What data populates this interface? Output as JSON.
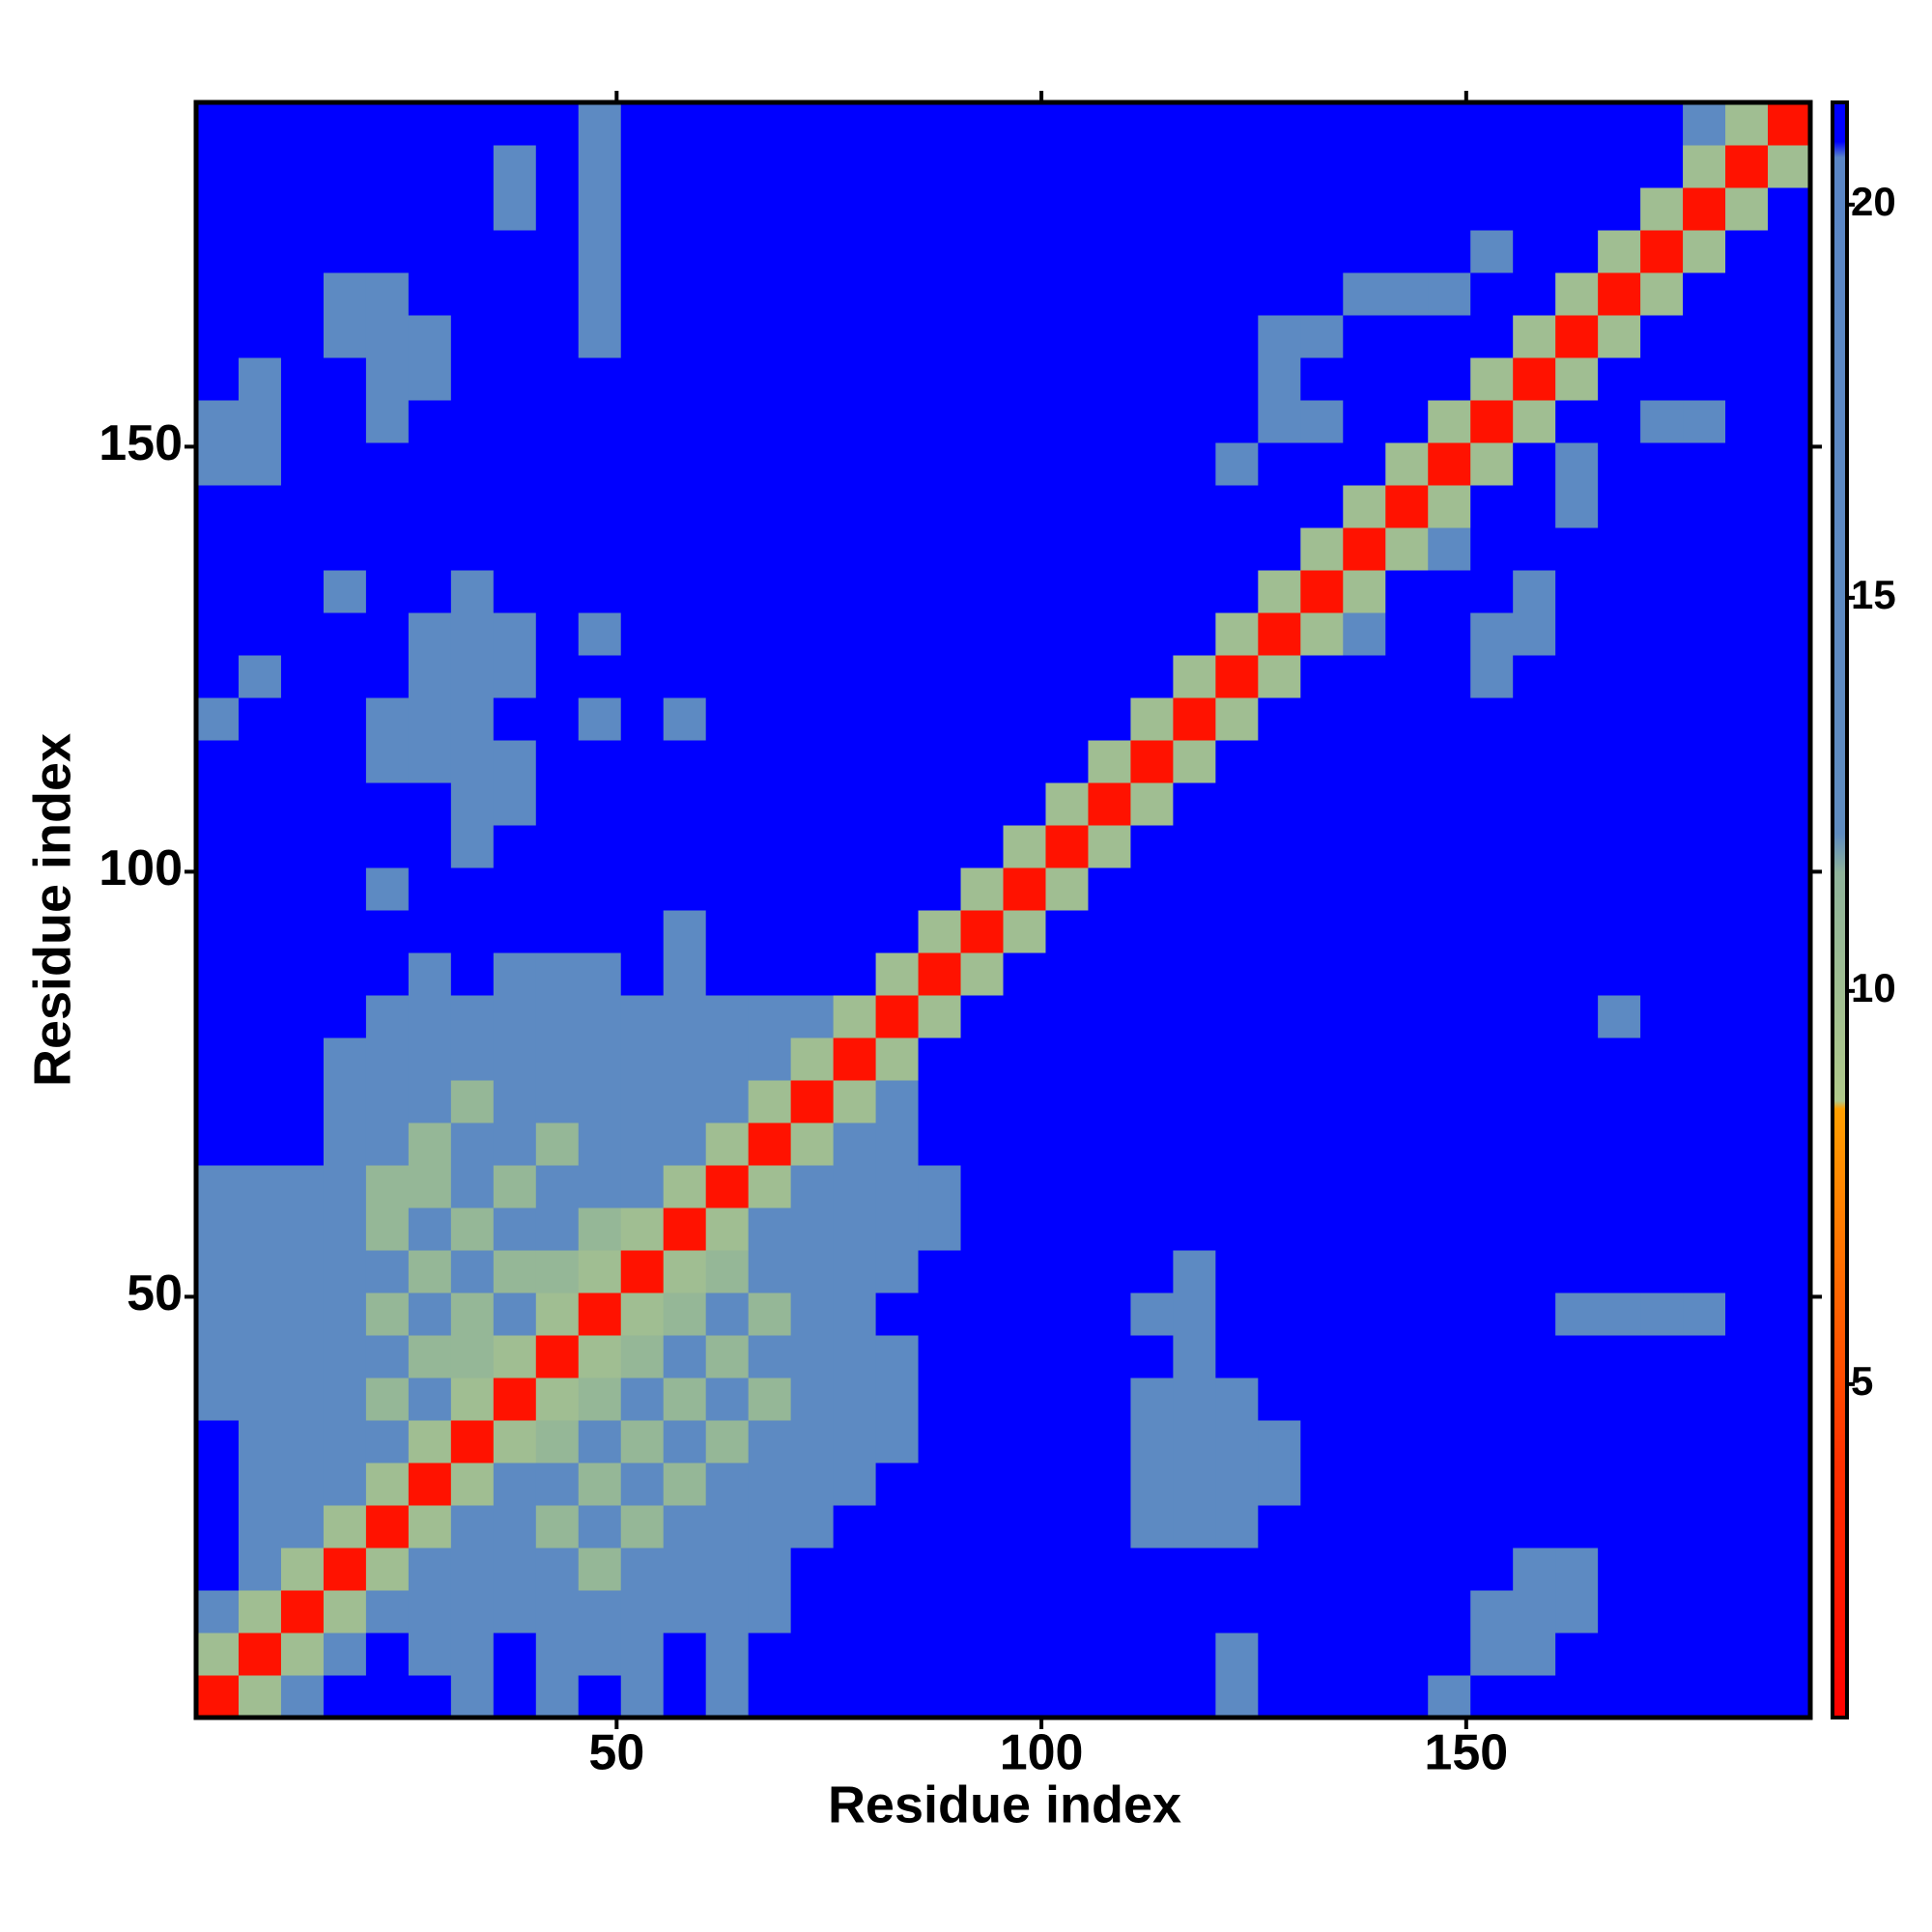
{
  "chart_data": {
    "type": "heatmap",
    "x_label": "Residue index",
    "y_label": "Residue index",
    "xlim": [
      0.5,
      190.5
    ],
    "ylim": [
      0.5,
      190.5
    ],
    "xticks": [
      50,
      100,
      150
    ],
    "yticks": [
      50,
      100,
      150
    ],
    "x": [
      3,
      8,
      13,
      18,
      23,
      28,
      33,
      38,
      43,
      48,
      53,
      58,
      63,
      68,
      73,
      78,
      83,
      88,
      93,
      98,
      103,
      108,
      113,
      118,
      123,
      128,
      133,
      138,
      143,
      148,
      153,
      158,
      163,
      168,
      173,
      178,
      183,
      188
    ],
    "y": [
      3,
      8,
      13,
      18,
      23,
      28,
      33,
      38,
      43,
      48,
      53,
      58,
      63,
      68,
      73,
      78,
      83,
      88,
      93,
      98,
      103,
      108,
      113,
      118,
      123,
      128,
      133,
      138,
      143,
      148,
      153,
      158,
      163,
      168,
      173,
      178,
      183,
      188
    ],
    "colorscale": [
      {
        "value": 0.76,
        "color": "#ff0000"
      },
      {
        "value": 4,
        "color": "#ff3000"
      },
      {
        "value": 8.5,
        "color": "#ffa000"
      },
      {
        "value": 8.6,
        "color": "#b0c98a"
      },
      {
        "value": 11.5,
        "color": "#8fb39a"
      },
      {
        "value": 12,
        "color": "#5f8cc0"
      },
      {
        "value": 20.6,
        "color": "#5a86c6"
      },
      {
        "value": 20.8,
        "color": "#0000ff"
      },
      {
        "value": 21.3,
        "color": "#0000ff"
      }
    ],
    "colorbar": {
      "ylim": [
        0.76,
        21.3
      ],
      "ticks": [
        5,
        10,
        15,
        20
      ]
    },
    "z": [
      [
        2,
        10,
        15,
        21,
        21,
        21,
        15,
        21,
        15,
        21,
        15,
        21,
        15,
        21,
        21,
        21,
        21,
        21,
        21,
        21,
        21,
        21,
        21,
        21,
        15,
        21,
        21,
        21,
        21,
        15,
        21,
        21,
        21,
        21,
        21,
        21,
        21,
        21
      ],
      [
        10,
        2,
        10,
        15,
        21,
        15,
        15,
        21,
        15,
        15,
        15,
        21,
        15,
        21,
        21,
        21,
        21,
        21,
        21,
        21,
        21,
        21,
        21,
        21,
        15,
        21,
        21,
        21,
        21,
        21,
        15,
        15,
        21,
        21,
        21,
        21,
        21,
        21
      ],
      [
        15,
        10,
        2,
        10,
        15,
        15,
        15,
        15,
        15,
        15,
        15,
        15,
        15,
        15,
        21,
        21,
        21,
        21,
        21,
        21,
        21,
        21,
        21,
        21,
        21,
        21,
        21,
        21,
        21,
        21,
        15,
        15,
        15,
        21,
        21,
        21,
        21,
        21
      ],
      [
        21,
        15,
        10,
        2,
        10,
        15,
        15,
        15,
        15,
        11,
        15,
        15,
        15,
        15,
        21,
        21,
        21,
        21,
        21,
        21,
        21,
        21,
        21,
        21,
        21,
        21,
        21,
        21,
        21,
        21,
        21,
        15,
        15,
        21,
        21,
        21,
        21,
        21
      ],
      [
        21,
        15,
        15,
        10,
        2,
        10,
        15,
        15,
        11,
        15,
        11,
        15,
        15,
        15,
        15,
        21,
        21,
        21,
        21,
        21,
        21,
        21,
        15,
        15,
        15,
        21,
        21,
        21,
        21,
        21,
        21,
        21,
        21,
        21,
        21,
        21,
        21,
        21
      ],
      [
        21,
        15,
        15,
        15,
        10,
        2,
        10,
        15,
        15,
        11,
        15,
        11,
        15,
        15,
        15,
        15,
        21,
        21,
        21,
        21,
        21,
        21,
        15,
        15,
        15,
        15,
        21,
        21,
        21,
        21,
        21,
        21,
        21,
        21,
        21,
        21,
        21,
        21
      ],
      [
        21,
        15,
        15,
        15,
        15,
        10,
        2,
        10,
        11,
        15,
        11,
        15,
        11,
        15,
        15,
        15,
        15,
        21,
        21,
        21,
        21,
        21,
        15,
        15,
        15,
        15,
        21,
        21,
        21,
        21,
        21,
        21,
        21,
        21,
        21,
        21,
        21,
        21
      ],
      [
        15,
        15,
        15,
        15,
        11,
        15,
        10,
        2,
        10,
        11,
        15,
        11,
        15,
        11,
        15,
        15,
        15,
        21,
        21,
        21,
        21,
        21,
        15,
        15,
        15,
        21,
        21,
        21,
        21,
        21,
        21,
        21,
        21,
        21,
        21,
        21,
        21,
        21
      ],
      [
        15,
        15,
        15,
        15,
        15,
        11,
        11,
        10,
        2,
        10,
        11,
        15,
        11,
        15,
        15,
        15,
        15,
        21,
        21,
        21,
        21,
        21,
        21,
        15,
        21,
        21,
        21,
        21,
        21,
        21,
        21,
        21,
        21,
        21,
        21,
        21,
        21,
        21
      ],
      [
        15,
        15,
        15,
        15,
        11,
        15,
        11,
        15,
        10,
        2,
        10,
        11,
        15,
        11,
        15,
        15,
        21,
        21,
        21,
        21,
        21,
        21,
        15,
        15,
        21,
        21,
        21,
        21,
        21,
        21,
        21,
        21,
        15,
        15,
        15,
        15,
        21,
        21
      ],
      [
        15,
        15,
        15,
        15,
        15,
        11,
        15,
        11,
        11,
        10,
        2,
        10,
        11,
        15,
        15,
        15,
        15,
        21,
        21,
        21,
        21,
        21,
        21,
        15,
        21,
        21,
        21,
        21,
        21,
        21,
        21,
        21,
        21,
        21,
        21,
        21,
        21,
        21
      ],
      [
        15,
        15,
        15,
        15,
        11,
        15,
        11,
        15,
        15,
        11,
        10,
        2,
        10,
        15,
        15,
        15,
        15,
        15,
        21,
        21,
        21,
        21,
        21,
        21,
        21,
        21,
        21,
        21,
        21,
        21,
        21,
        21,
        21,
        21,
        21,
        21,
        21,
        21
      ],
      [
        15,
        15,
        15,
        15,
        11,
        11,
        15,
        11,
        15,
        15,
        15,
        10,
        2,
        10,
        15,
        15,
        15,
        15,
        21,
        21,
        21,
        21,
        21,
        21,
        21,
        21,
        21,
        21,
        21,
        21,
        21,
        21,
        21,
        21,
        21,
        21,
        21,
        21
      ],
      [
        21,
        21,
        21,
        15,
        15,
        11,
        15,
        15,
        11,
        15,
        15,
        15,
        10,
        2,
        10,
        15,
        15,
        21,
        21,
        21,
        21,
        21,
        21,
        21,
        21,
        21,
        21,
        21,
        21,
        21,
        21,
        21,
        21,
        21,
        21,
        21,
        21,
        21
      ],
      [
        21,
        21,
        21,
        15,
        15,
        15,
        11,
        15,
        15,
        15,
        15,
        15,
        15,
        10,
        2,
        10,
        15,
        21,
        21,
        21,
        21,
        21,
        21,
        21,
        21,
        21,
        21,
        21,
        21,
        21,
        21,
        21,
        21,
        21,
        21,
        21,
        21,
        21
      ],
      [
        21,
        21,
        21,
        15,
        15,
        15,
        15,
        15,
        15,
        15,
        15,
        15,
        15,
        15,
        10,
        2,
        10,
        21,
        21,
        21,
        21,
        21,
        21,
        21,
        21,
        21,
        21,
        21,
        21,
        21,
        21,
        21,
        21,
        21,
        21,
        21,
        21,
        21
      ],
      [
        21,
        21,
        21,
        21,
        15,
        15,
        15,
        15,
        15,
        15,
        15,
        15,
        15,
        15,
        15,
        10,
        2,
        10,
        21,
        21,
        21,
        21,
        21,
        21,
        21,
        21,
        21,
        21,
        21,
        21,
        21,
        21,
        21,
        15,
        21,
        21,
        21,
        21
      ],
      [
        21,
        21,
        21,
        21,
        21,
        15,
        21,
        15,
        15,
        15,
        21,
        15,
        21,
        21,
        21,
        21,
        10,
        2,
        10,
        21,
        21,
        21,
        21,
        21,
        21,
        21,
        21,
        21,
        21,
        21,
        21,
        21,
        21,
        21,
        21,
        21,
        21,
        21
      ],
      [
        21,
        21,
        21,
        21,
        21,
        21,
        21,
        21,
        21,
        21,
        21,
        15,
        21,
        21,
        21,
        21,
        21,
        10,
        2,
        10,
        21,
        21,
        21,
        21,
        21,
        21,
        21,
        21,
        21,
        21,
        21,
        21,
        21,
        21,
        21,
        21,
        21,
        21
      ],
      [
        21,
        21,
        21,
        21,
        15,
        21,
        21,
        21,
        21,
        21,
        21,
        21,
        21,
        21,
        21,
        21,
        21,
        21,
        10,
        2,
        10,
        21,
        21,
        21,
        21,
        21,
        21,
        21,
        21,
        21,
        21,
        21,
        21,
        21,
        21,
        21,
        21,
        21
      ],
      [
        21,
        21,
        21,
        21,
        21,
        21,
        15,
        21,
        21,
        21,
        21,
        21,
        21,
        21,
        21,
        21,
        21,
        21,
        21,
        10,
        2,
        10,
        21,
        21,
        21,
        21,
        21,
        21,
        21,
        21,
        21,
        21,
        21,
        21,
        21,
        21,
        21,
        21
      ],
      [
        21,
        21,
        21,
        21,
        21,
        21,
        15,
        15,
        21,
        21,
        21,
        21,
        21,
        21,
        21,
        21,
        21,
        21,
        21,
        21,
        10,
        2,
        10,
        21,
        21,
        21,
        21,
        21,
        21,
        21,
        21,
        21,
        21,
        21,
        21,
        21,
        21,
        21
      ],
      [
        21,
        21,
        21,
        21,
        15,
        15,
        15,
        15,
        21,
        21,
        21,
        21,
        21,
        21,
        21,
        21,
        21,
        21,
        21,
        21,
        21,
        10,
        2,
        10,
        21,
        21,
        21,
        21,
        21,
        21,
        21,
        21,
        21,
        21,
        21,
        21,
        21,
        21
      ],
      [
        15,
        21,
        21,
        21,
        15,
        15,
        15,
        21,
        21,
        15,
        21,
        15,
        21,
        21,
        21,
        21,
        21,
        21,
        21,
        21,
        21,
        21,
        10,
        2,
        10,
        21,
        21,
        21,
        21,
        21,
        21,
        21,
        21,
        21,
        21,
        21,
        21,
        21
      ],
      [
        21,
        15,
        21,
        21,
        21,
        15,
        15,
        15,
        21,
        21,
        21,
        21,
        21,
        21,
        21,
        21,
        21,
        21,
        21,
        21,
        21,
        21,
        21,
        10,
        2,
        10,
        21,
        21,
        21,
        21,
        15,
        21,
        21,
        21,
        21,
        21,
        21,
        21
      ],
      [
        21,
        21,
        21,
        21,
        21,
        15,
        15,
        15,
        21,
        15,
        21,
        21,
        21,
        21,
        21,
        21,
        21,
        21,
        21,
        21,
        21,
        21,
        21,
        21,
        10,
        2,
        10,
        15,
        21,
        21,
        15,
        15,
        21,
        21,
        21,
        21,
        21,
        21
      ],
      [
        21,
        21,
        21,
        15,
        21,
        21,
        15,
        21,
        21,
        21,
        21,
        21,
        21,
        21,
        21,
        21,
        21,
        21,
        21,
        21,
        21,
        21,
        21,
        21,
        21,
        10,
        2,
        10,
        21,
        21,
        21,
        15,
        21,
        21,
        21,
        21,
        21,
        21
      ],
      [
        21,
        21,
        21,
        21,
        21,
        21,
        21,
        21,
        21,
        21,
        21,
        21,
        21,
        21,
        21,
        21,
        21,
        21,
        21,
        21,
        21,
        21,
        21,
        21,
        21,
        21,
        10,
        2,
        10,
        15,
        21,
        21,
        21,
        21,
        21,
        21,
        21,
        21
      ],
      [
        21,
        21,
        21,
        21,
        21,
        21,
        21,
        21,
        21,
        21,
        21,
        21,
        21,
        21,
        21,
        21,
        21,
        21,
        21,
        21,
        21,
        21,
        21,
        21,
        21,
        21,
        21,
        10,
        2,
        10,
        21,
        21,
        15,
        21,
        21,
        21,
        21,
        21
      ],
      [
        15,
        15,
        21,
        21,
        21,
        21,
        21,
        21,
        21,
        21,
        21,
        21,
        21,
        21,
        21,
        21,
        21,
        21,
        21,
        21,
        21,
        21,
        21,
        21,
        15,
        21,
        21,
        21,
        10,
        2,
        10,
        21,
        15,
        21,
        21,
        21,
        21,
        21
      ],
      [
        15,
        15,
        21,
        21,
        15,
        21,
        21,
        21,
        21,
        21,
        21,
        21,
        21,
        21,
        21,
        21,
        21,
        21,
        21,
        21,
        21,
        21,
        21,
        21,
        21,
        15,
        15,
        21,
        21,
        10,
        2,
        10,
        21,
        21,
        15,
        15,
        21,
        21
      ],
      [
        21,
        15,
        21,
        21,
        15,
        15,
        21,
        21,
        21,
        21,
        21,
        21,
        21,
        21,
        21,
        21,
        21,
        21,
        21,
        21,
        21,
        21,
        21,
        21,
        21,
        15,
        21,
        21,
        21,
        21,
        10,
        2,
        10,
        21,
        21,
        21,
        21,
        21
      ],
      [
        21,
        21,
        21,
        15,
        15,
        15,
        21,
        21,
        21,
        15,
        21,
        21,
        21,
        21,
        21,
        21,
        21,
        21,
        21,
        21,
        21,
        21,
        21,
        21,
        21,
        15,
        15,
        21,
        21,
        21,
        21,
        10,
        2,
        10,
        21,
        21,
        21,
        21
      ],
      [
        21,
        21,
        21,
        15,
        15,
        21,
        21,
        21,
        21,
        15,
        21,
        21,
        21,
        21,
        21,
        21,
        21,
        21,
        21,
        21,
        21,
        21,
        21,
        21,
        21,
        21,
        21,
        15,
        15,
        15,
        21,
        21,
        10,
        2,
        10,
        21,
        21,
        21
      ],
      [
        21,
        21,
        21,
        21,
        21,
        21,
        21,
        21,
        21,
        15,
        21,
        21,
        21,
        21,
        21,
        21,
        21,
        21,
        21,
        21,
        21,
        21,
        21,
        21,
        21,
        21,
        21,
        21,
        21,
        21,
        15,
        21,
        21,
        10,
        2,
        10,
        21,
        21
      ],
      [
        21,
        21,
        21,
        21,
        21,
        21,
        21,
        15,
        21,
        15,
        21,
        21,
        21,
        21,
        21,
        21,
        21,
        21,
        21,
        21,
        21,
        21,
        21,
        21,
        21,
        21,
        21,
        21,
        21,
        21,
        21,
        21,
        21,
        21,
        10,
        2,
        10,
        21
      ],
      [
        21,
        21,
        21,
        21,
        21,
        21,
        21,
        15,
        21,
        15,
        21,
        21,
        21,
        21,
        21,
        21,
        21,
        21,
        21,
        21,
        21,
        21,
        21,
        21,
        21,
        21,
        21,
        21,
        21,
        21,
        21,
        21,
        21,
        21,
        21,
        10,
        2,
        10
      ],
      [
        21,
        21,
        21,
        21,
        21,
        21,
        21,
        21,
        21,
        15,
        21,
        21,
        21,
        21,
        21,
        21,
        21,
        21,
        21,
        21,
        21,
        21,
        21,
        21,
        21,
        21,
        21,
        21,
        21,
        21,
        21,
        21,
        21,
        21,
        21,
        15,
        10,
        2
      ]
    ]
  }
}
